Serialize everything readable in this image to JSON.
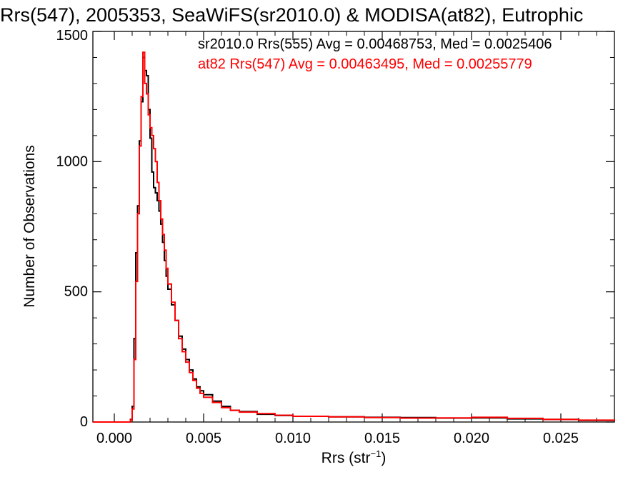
{
  "chart_data": {
    "type": "line",
    "title": "Rrs(547), 2005353, SeaWiFS(sr2010.0) & MODISA(at82), Eutrophic",
    "xlabel_base": "Rrs (str",
    "xlabel_sup": "−1",
    "xlabel_end": ")",
    "ylabel": "Number of Observations",
    "xlim": [
      -0.0012,
      0.028
    ],
    "ylim": [
      0,
      1500
    ],
    "x_ticks": [
      "0.000",
      "0.005",
      "0.010",
      "0.015",
      "0.020",
      "0.025"
    ],
    "x_tick_values": [
      0,
      0.005,
      0.01,
      0.015,
      0.02,
      0.025
    ],
    "y_ticks": [
      "0",
      "500",
      "1000",
      "1500"
    ],
    "y_tick_values": [
      0,
      500,
      1000,
      1500
    ],
    "legend": [
      {
        "text": "sr2010.0 Rrs(555) Avg = 0.00468753, Med = 0.0025406",
        "color": "#000000"
      },
      {
        "text": "at82 Rrs(547) Avg = 0.00463495, Med = 0.00255779",
        "color": "#ff0000"
      }
    ],
    "series": [
      {
        "name": "sr2010.0",
        "color": "#000000",
        "x": [
          -0.0012,
          0.0,
          0.0006,
          0.0009,
          0.001,
          0.0011,
          0.0012,
          0.0013,
          0.0014,
          0.0015,
          0.0016,
          0.0017,
          0.0018,
          0.0019,
          0.002,
          0.0021,
          0.0022,
          0.0023,
          0.0024,
          0.0025,
          0.0026,
          0.0027,
          0.0028,
          0.0029,
          0.003,
          0.0032,
          0.0034,
          0.0036,
          0.0038,
          0.004,
          0.0042,
          0.0044,
          0.0046,
          0.0048,
          0.005,
          0.0055,
          0.006,
          0.0065,
          0.007,
          0.008,
          0.009,
          0.01,
          0.012,
          0.014,
          0.016,
          0.018,
          0.02,
          0.022,
          0.024,
          0.026,
          0.028
        ],
        "values": [
          0,
          0,
          0,
          10,
          60,
          320,
          650,
          830,
          1080,
          1230,
          1400,
          1350,
          1330,
          1200,
          1090,
          960,
          900,
          880,
          850,
          810,
          760,
          690,
          620,
          560,
          510,
          450,
          390,
          330,
          280,
          240,
          200,
          165,
          135,
          120,
          105,
          80,
          60,
          45,
          40,
          30,
          25,
          22,
          20,
          18,
          17,
          15,
          16,
          12,
          10,
          6,
          2
        ]
      },
      {
        "name": "at82",
        "color": "#ff0000",
        "x": [
          -0.0012,
          0.0,
          0.0006,
          0.0009,
          0.001,
          0.0011,
          0.0012,
          0.0013,
          0.0014,
          0.0015,
          0.0016,
          0.0017,
          0.0018,
          0.0019,
          0.002,
          0.0021,
          0.0022,
          0.0023,
          0.0024,
          0.0025,
          0.0026,
          0.0027,
          0.0028,
          0.0029,
          0.003,
          0.0032,
          0.0034,
          0.0036,
          0.0038,
          0.004,
          0.0042,
          0.0044,
          0.0046,
          0.0048,
          0.005,
          0.0055,
          0.006,
          0.0065,
          0.007,
          0.008,
          0.009,
          0.01,
          0.012,
          0.014,
          0.016,
          0.018,
          0.02,
          0.022,
          0.024,
          0.026,
          0.028
        ],
        "values": [
          0,
          0,
          0,
          8,
          50,
          240,
          540,
          800,
          1060,
          1250,
          1420,
          1300,
          1260,
          1180,
          1130,
          1100,
          1050,
          1000,
          920,
          850,
          780,
          720,
          660,
          590,
          530,
          460,
          390,
          320,
          270,
          230,
          190,
          160,
          130,
          110,
          95,
          75,
          55,
          45,
          38,
          32,
          26,
          22,
          20,
          17,
          15,
          16,
          18,
          14,
          10,
          7,
          3
        ]
      }
    ]
  }
}
